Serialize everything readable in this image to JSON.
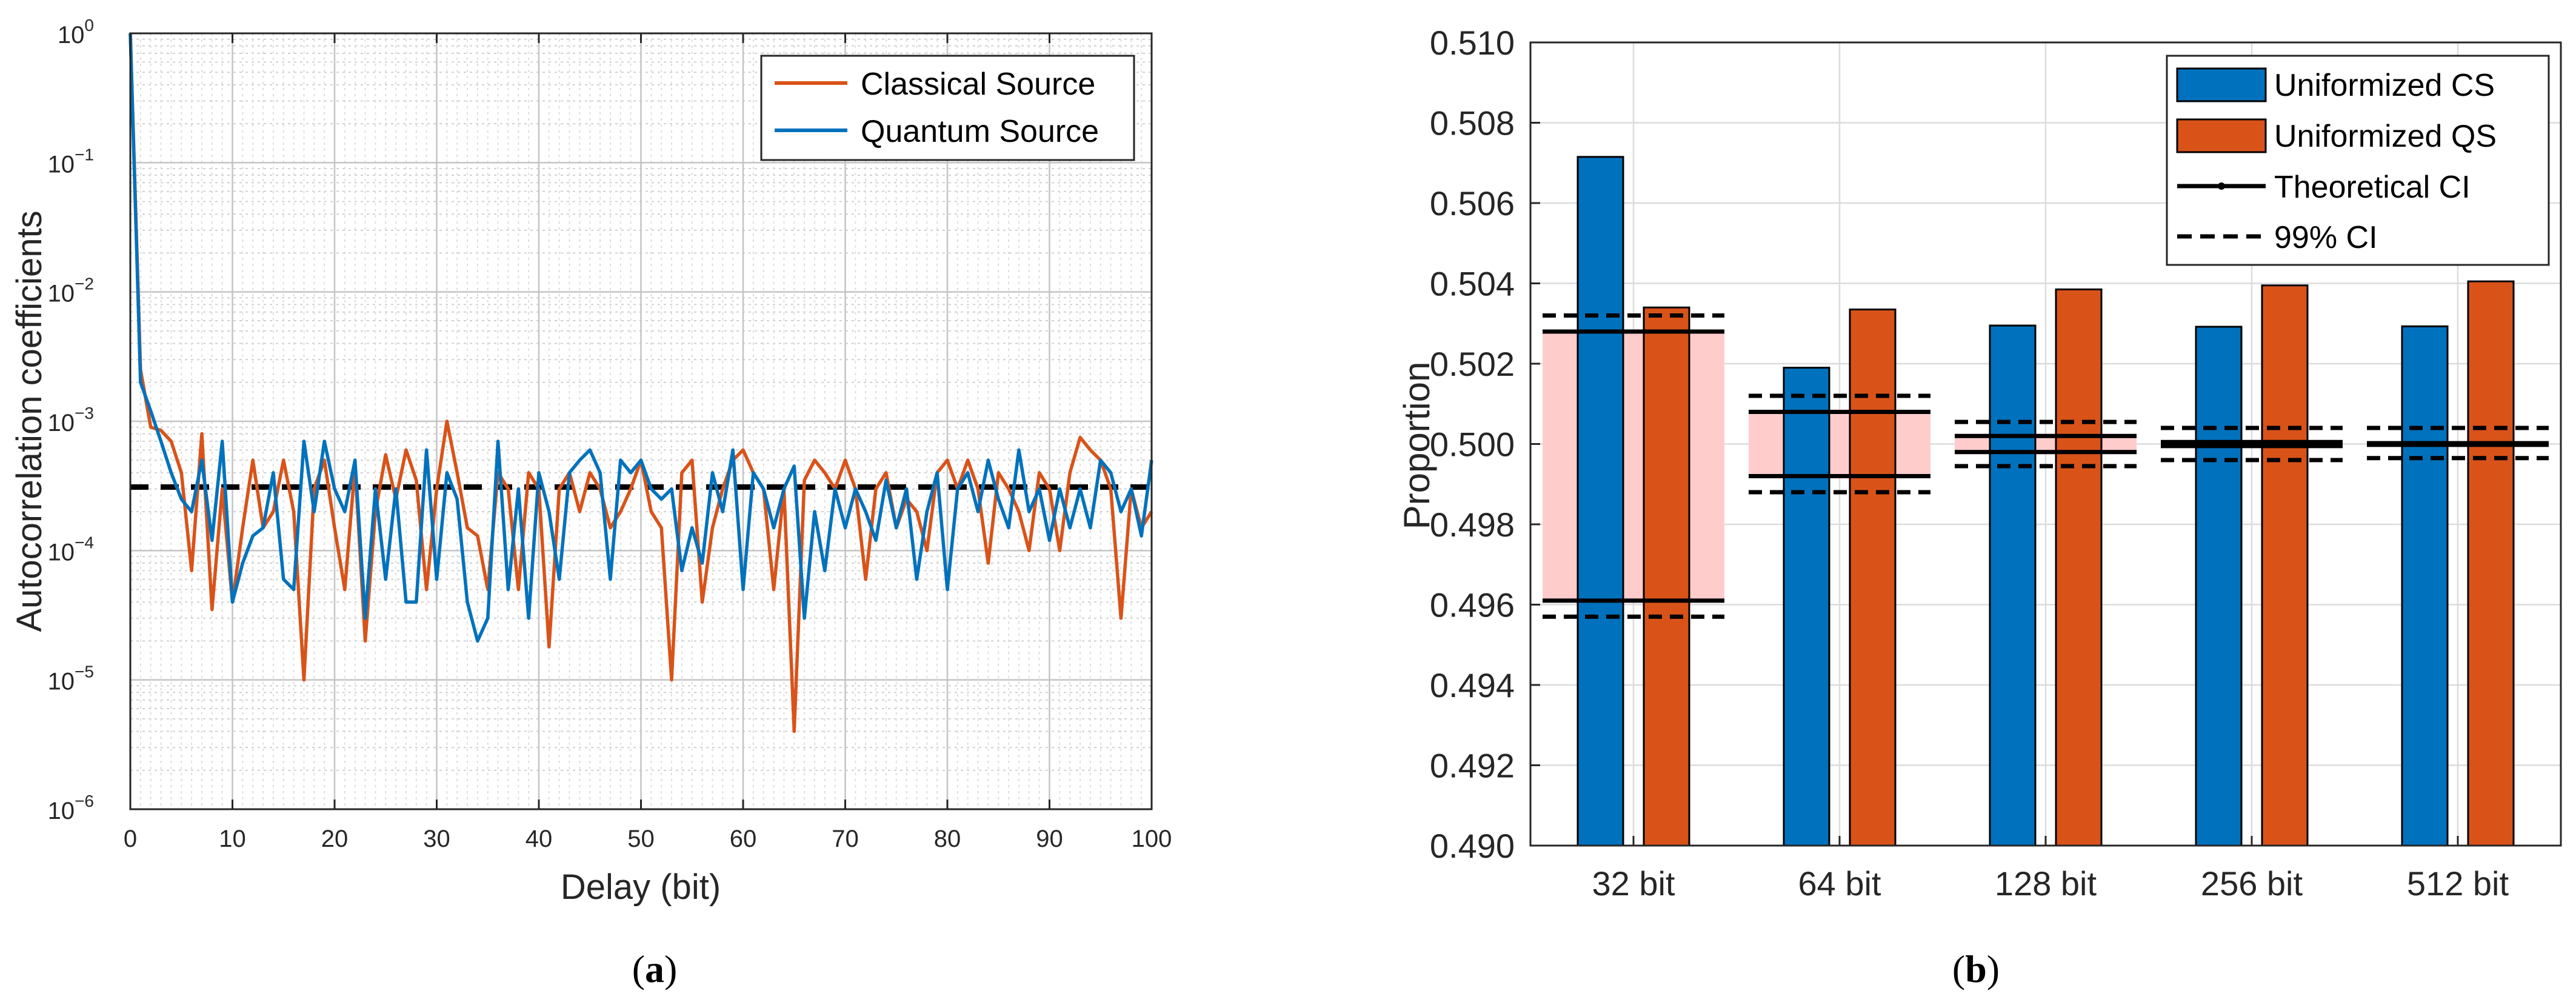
{
  "panel_a_caption": "a",
  "panel_b_caption": "b",
  "chart_data": [
    {
      "type": "line",
      "panel": "a",
      "xlabel": "Delay (bit)",
      "ylabel": "Autocorrelation coefficients",
      "xlim": [
        0,
        100
      ],
      "ylim": [
        1e-06,
        1
      ],
      "yscale": "log",
      "grid": true,
      "legend_position": "top-right",
      "x_ticks": [
        "0",
        "10",
        "20",
        "30",
        "40",
        "50",
        "60",
        "70",
        "80",
        "90",
        "100"
      ],
      "y_ticks": [
        {
          "base": "10",
          "exp": "−6",
          "value": 1e-06
        },
        {
          "base": "10",
          "exp": "−5",
          "value": 1e-05
        },
        {
          "base": "10",
          "exp": "−4",
          "value": 0.0001
        },
        {
          "base": "10",
          "exp": "−3",
          "value": 0.001
        },
        {
          "base": "10",
          "exp": "−2",
          "value": 0.01
        },
        {
          "base": "10",
          "exp": "−1",
          "value": 0.1
        },
        {
          "base": "10",
          "exp": "0",
          "value": 1
        }
      ],
      "threshold": 0.00031,
      "threshold_color": "#000000",
      "series": [
        {
          "name": "Classical Source",
          "color": "#D95319",
          "values": [
            1.0,
            0.0025,
            0.0009,
            0.00085,
            0.0007,
            0.0004,
            7e-05,
            0.0008,
            3.5e-05,
            0.0003,
            4e-05,
            0.00015,
            0.0005,
            0.00015,
            0.0002,
            0.0005,
            0.0002,
            1e-05,
            0.0003,
            0.0005,
            0.00015,
            5e-05,
            0.00045,
            2e-05,
            0.0002,
            0.00055,
            0.00025,
            0.0006,
            0.00035,
            5e-05,
            0.0003,
            0.001,
            0.0004,
            0.00015,
            0.00013,
            5e-05,
            0.0004,
            0.0003,
            5e-05,
            0.0004,
            0.0003,
            1.8e-05,
            0.0003,
            0.0004,
            0.0002,
            0.0004,
            0.0003,
            0.00015,
            0.0002,
            0.0003,
            0.0005,
            0.0002,
            0.00015,
            1e-05,
            0.0004,
            0.0005,
            4e-05,
            0.00015,
            0.0003,
            0.0005,
            0.0006,
            0.0004,
            0.0003,
            5e-05,
            0.0003,
            4e-06,
            0.00035,
            0.0005,
            0.0004,
            0.0003,
            0.0005,
            0.0003,
            6e-05,
            0.0003,
            0.0004,
            0.00015,
            0.00025,
            0.0002,
            0.0001,
            0.0004,
            0.0005,
            0.0003,
            0.0005,
            0.0003,
            8e-05,
            0.0004,
            0.0003,
            0.0002,
            0.0001,
            0.0004,
            0.0003,
            0.0001,
            0.0004,
            0.00075,
            0.0006,
            0.0005,
            0.0003,
            3e-05,
            0.0003,
            0.00015,
            0.0002
          ]
        },
        {
          "name": "Quantum Source",
          "color": "#0072BD",
          "values": [
            1.0,
            0.002,
            0.0012,
            0.0007,
            0.0004,
            0.00025,
            0.0002,
            0.0005,
            0.00012,
            0.0007,
            4e-05,
            8e-05,
            0.00013,
            0.00015,
            0.0004,
            6e-05,
            5e-05,
            0.0007,
            0.0002,
            0.0007,
            0.0003,
            0.0002,
            0.0005,
            3e-05,
            0.0003,
            6e-05,
            0.0003,
            4e-05,
            4e-05,
            0.0006,
            6e-05,
            0.0004,
            0.00025,
            4e-05,
            2e-05,
            3e-05,
            0.0007,
            5e-05,
            0.0003,
            3e-05,
            0.0004,
            0.0002,
            6e-05,
            0.0004,
            0.0005,
            0.0006,
            0.0004,
            6e-05,
            0.0005,
            0.0004,
            0.0005,
            0.0003,
            0.00025,
            0.0003,
            7e-05,
            0.00015,
            8e-05,
            0.0004,
            0.0002,
            0.0006,
            5e-05,
            0.0004,
            0.0003,
            0.00015,
            0.0003,
            0.00045,
            3e-05,
            0.0002,
            7e-05,
            0.0003,
            0.00015,
            0.0003,
            0.0002,
            0.00012,
            0.00035,
            0.00015,
            0.0003,
            6e-05,
            0.0002,
            0.0004,
            5e-05,
            0.0003,
            0.0004,
            0.0002,
            0.0005,
            0.00025,
            0.00015,
            0.0006,
            0.0002,
            0.0003,
            0.00012,
            0.0003,
            0.00015,
            0.0003,
            0.00015,
            0.0005,
            0.0004,
            0.0002,
            0.0003,
            0.00013,
            0.0005
          ]
        }
      ]
    },
    {
      "type": "bar",
      "panel": "b",
      "ylabel": "Proportion",
      "ylim": [
        0.49,
        0.51
      ],
      "grid": true,
      "legend_position": "top-right",
      "categories": [
        "32 bit",
        "64 bit",
        "128 bit",
        "256 bit",
        "512 bit"
      ],
      "y_ticks": [
        "0.490",
        "0.492",
        "0.494",
        "0.496",
        "0.498",
        "0.500",
        "0.502",
        "0.504",
        "0.506",
        "0.508",
        "0.510"
      ],
      "series": [
        {
          "name": "Uniformized CS",
          "color": "#0072BD",
          "values": [
            0.50715,
            0.5019,
            0.50295,
            0.50292,
            0.50293
          ]
        },
        {
          "name": "Uniformized QS",
          "color": "#D95319",
          "values": [
            0.5034,
            0.50335,
            0.50385,
            0.50395,
            0.50405
          ]
        }
      ],
      "theoretical_ci": {
        "name": "Theoretical CI",
        "color": "#000000",
        "fill_color": "#FFCCCC",
        "lower": [
          0.4961,
          0.4992,
          0.4998,
          0.49995,
          0.49998
        ],
        "upper": [
          0.5028,
          0.5008,
          0.5002,
          0.50005,
          0.50002
        ]
      },
      "ci99": {
        "name": "99% CI",
        "color": "#000000",
        "lower": [
          0.4957,
          0.4988,
          0.49945,
          0.4996,
          0.49965
        ],
        "upper": [
          0.5032,
          0.5012,
          0.50055,
          0.5004,
          0.5004
        ]
      }
    }
  ]
}
